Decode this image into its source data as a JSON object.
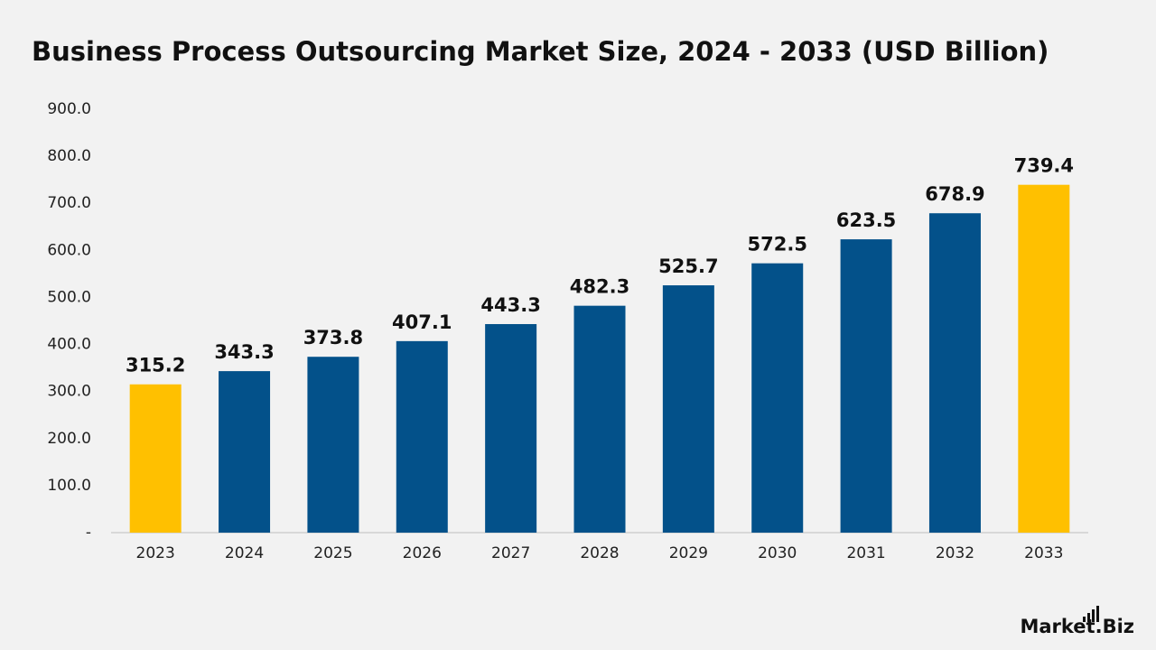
{
  "chart_data": {
    "type": "bar",
    "title": "Business Process Outsourcing Market Size, 2024 - 2033 (USD Billion)",
    "categories": [
      "2023",
      "2024",
      "2025",
      "2026",
      "2027",
      "2028",
      "2029",
      "2030",
      "2031",
      "2032",
      "2033"
    ],
    "values": [
      315.2,
      343.3,
      373.8,
      407.1,
      443.3,
      482.3,
      525.7,
      572.5,
      623.5,
      678.9,
      739.4
    ],
    "colors": [
      "#ffc000",
      "#03518a",
      "#03518a",
      "#03518a",
      "#03518a",
      "#03518a",
      "#03518a",
      "#03518a",
      "#03518a",
      "#03518a",
      "#ffc000"
    ],
    "ylim": [
      0,
      900
    ],
    "yticks": [
      {
        "value": 0,
        "label": "-"
      },
      {
        "value": 100,
        "label": "100.0"
      },
      {
        "value": 200,
        "label": "200.0"
      },
      {
        "value": 300,
        "label": "300.0"
      },
      {
        "value": 400,
        "label": "400.0"
      },
      {
        "value": 500,
        "label": "500.0"
      },
      {
        "value": 600,
        "label": "600.0"
      },
      {
        "value": 700,
        "label": "700.0"
      },
      {
        "value": 800,
        "label": "800.0"
      },
      {
        "value": 900,
        "label": "900.0"
      }
    ],
    "grid": false,
    "watermark": "Market.Biz"
  }
}
